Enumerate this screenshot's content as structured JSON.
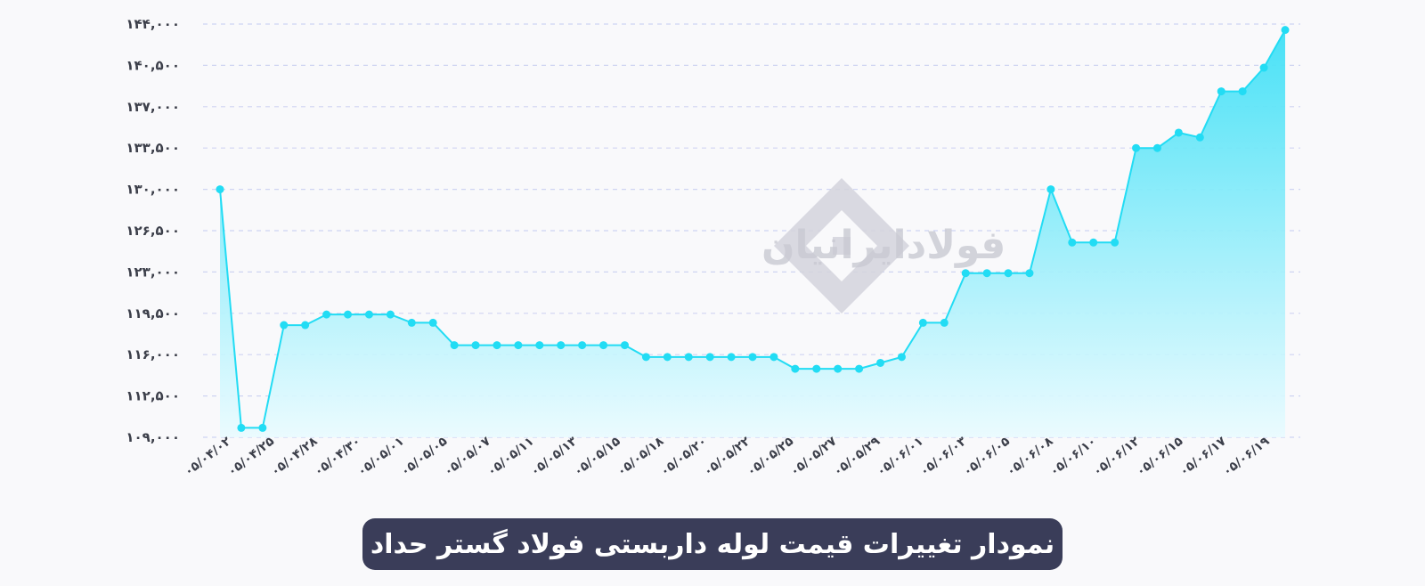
{
  "chart_data": {
    "type": "area",
    "title": "نمودار تغییرات قیمت لوله داربستی فولاد گستر حداد",
    "watermark": "فولادایرانیان",
    "line_color": "#22dcf4",
    "fill_color_top": "#3fe0f6",
    "fill_color_bottom": "#e9fbff",
    "grid_color": "#cfd4f2",
    "grid": true,
    "ylim": [
      109000,
      144000
    ],
    "yticks": [
      "۱۰۹,۰۰۰",
      "۱۱۲,۵۰۰",
      "۱۱۶,۰۰۰",
      "۱۱۹,۵۰۰",
      "۱۲۳,۰۰۰",
      "۱۲۶,۵۰۰",
      "۱۳۰,۰۰۰",
      "۱۳۳,۵۰۰",
      "۱۳۷,۰۰۰",
      "۱۴۰,۵۰۰",
      "۱۴۴,۰۰۰"
    ],
    "x_labels": [
      "۰۵/۰۴/۰۲",
      "۰۵/۰۴/۲۵",
      "۰۵/۰۴/۲۸",
      "۰۵/۰۴/۳۰",
      "۰۵/۰۵/۰۱",
      "۰۵/۰۵/۰۵",
      "۰۵/۰۵/۰۷",
      "۰۵/۰۵/۱۱",
      "۰۵/۰۵/۱۳",
      "۰۵/۰۵/۱۵",
      "۰۵/۰۵/۱۸",
      "۰۵/۰۵/۲۰",
      "۰۵/۰۵/۲۲",
      "۰۵/۰۵/۲۵",
      "۰۵/۰۵/۲۷",
      "۰۵/۰۵/۲۹",
      "۰۵/۰۶/۰۱",
      "۰۵/۰۶/۰۳",
      "۰۵/۰۶/۰۵",
      "۰۵/۰۶/۰۸",
      "۰۵/۰۶/۱۰",
      "۰۵/۰۶/۱۲",
      "۰۵/۰۶/۱۵",
      "۰۵/۰۶/۱۷",
      "۰۵/۰۶/۱۹"
    ],
    "values": [
      130000,
      109800,
      109800,
      118500,
      118500,
      119400,
      119400,
      119400,
      119400,
      118700,
      118700,
      116800,
      116800,
      116800,
      116800,
      116800,
      116800,
      116800,
      116800,
      116800,
      115800,
      115800,
      115800,
      115800,
      115800,
      115800,
      115800,
      114800,
      114800,
      114800,
      114800,
      115300,
      115800,
      118700,
      118700,
      122900,
      122900,
      122900,
      122900,
      130000,
      125500,
      125500,
      125500,
      133500,
      133500,
      134800,
      134400,
      138300,
      138300,
      140300,
      143500
    ]
  }
}
